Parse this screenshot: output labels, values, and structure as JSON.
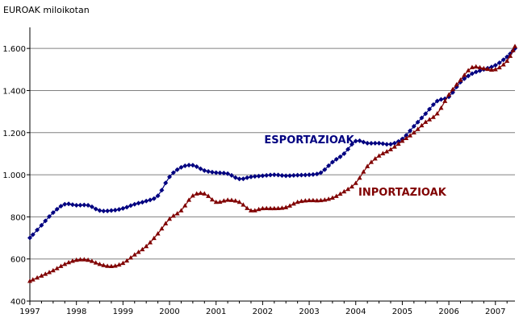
{
  "chart_data": {
    "type": "line",
    "unit_label": "EUROAK miloikotan",
    "x": [
      1997.0,
      1997.25,
      1997.5,
      1997.75,
      1998.0,
      1998.25,
      1998.5,
      1998.75,
      1999.0,
      1999.25,
      1999.5,
      1999.75,
      2000.0,
      2000.25,
      2000.5,
      2000.75,
      2001.0,
      2001.25,
      2001.5,
      2001.75,
      2002.0,
      2002.25,
      2002.5,
      2002.75,
      2003.0,
      2003.25,
      2003.5,
      2003.75,
      2004.0,
      2004.25,
      2004.5,
      2004.75,
      2005.0,
      2005.25,
      2005.5,
      2005.75,
      2006.0,
      2006.25,
      2006.5,
      2006.75,
      2007.0,
      2007.25,
      2007.42
    ],
    "series": [
      {
        "name": "ESPORTAZIOAK",
        "color": "#000080",
        "marker": "diamond",
        "values": [
          700,
          760,
          820,
          860,
          855,
          855,
          830,
          830,
          840,
          860,
          875,
          900,
          990,
          1035,
          1045,
          1020,
          1010,
          1005,
          980,
          990,
          995,
          1000,
          995,
          998,
          1000,
          1010,
          1060,
          1100,
          1160,
          1150,
          1150,
          1145,
          1170,
          1230,
          1290,
          1350,
          1370,
          1440,
          1480,
          1500,
          1520,
          1560,
          1600
        ]
      },
      {
        "name": "INPORTAZIOAK",
        "color": "#800000",
        "marker": "triangle",
        "values": [
          495,
          520,
          545,
          575,
          595,
          595,
          575,
          565,
          580,
          620,
          660,
          720,
          790,
          830,
          900,
          910,
          870,
          880,
          870,
          830,
          840,
          840,
          845,
          870,
          878,
          878,
          890,
          920,
          960,
          1040,
          1090,
          1120,
          1160,
          1200,
          1250,
          1290,
          1380,
          1450,
          1510,
          1505,
          1500,
          1540,
          1610
        ]
      }
    ],
    "xlim": [
      1997.0,
      2007.42
    ],
    "ylim": [
      400,
      1700
    ],
    "yticks": [
      400,
      600,
      800,
      1000,
      1200,
      1400,
      1600
    ],
    "ytick_labels": [
      "400",
      "600",
      "800",
      "1.000",
      "1.200",
      "1.400",
      "1.600"
    ],
    "xticks": [
      1997,
      1998,
      1999,
      2000,
      2001,
      2002,
      2003,
      2004,
      2005,
      2006,
      2007
    ],
    "xtick_labels": [
      "1997",
      "1998",
      "1999",
      "2000",
      "2001",
      "2002",
      "2003",
      "2004",
      "2005",
      "2006",
      "2007"
    ],
    "grid": "horizontal",
    "annotations": [
      {
        "text": "ESPORTAZIOAK",
        "series": "ESPORTAZIOAK",
        "x": 2003.0,
        "y": 1150
      },
      {
        "text": "INPORTAZIOAK",
        "series": "INPORTAZIOAK",
        "x": 2005.0,
        "y": 900
      }
    ]
  }
}
